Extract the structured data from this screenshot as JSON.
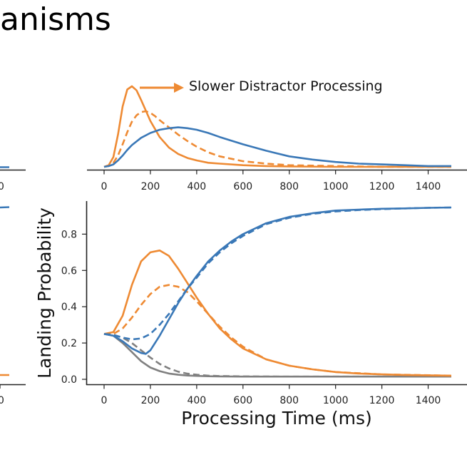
{
  "slide": {
    "title_fragment": "anisms"
  },
  "colors": {
    "orange": "#ee8a33",
    "blue": "#3a78b7",
    "gray": "#808080",
    "axis": "#222222"
  },
  "chart_data": [
    {
      "type": "line",
      "title": "",
      "xlabel": "",
      "ylabel": "",
      "xlim": [
        -80,
        1500
      ],
      "ylim": [
        0,
        1
      ],
      "xticks": [
        0,
        200,
        400,
        600,
        800,
        1000,
        1200,
        1400
      ],
      "annotation": {
        "text": "Slower Distractor Processing",
        "arrow": "right"
      },
      "y_axis_visible": false,
      "series": [
        {
          "color": "orange",
          "dash": "solid",
          "x": [
            0,
            20,
            40,
            60,
            80,
            100,
            120,
            140,
            160,
            180,
            200,
            240,
            280,
            320,
            360,
            400,
            450,
            500,
            600,
            700,
            800,
            1000,
            1200,
            1500
          ],
          "y": [
            0,
            0.02,
            0.12,
            0.4,
            0.75,
            0.96,
            1.0,
            0.95,
            0.83,
            0.7,
            0.57,
            0.37,
            0.24,
            0.16,
            0.11,
            0.08,
            0.05,
            0.04,
            0.02,
            0.01,
            0.005,
            0.0,
            0.0,
            0.0
          ]
        },
        {
          "color": "orange",
          "dash": "dashed",
          "x": [
            0,
            20,
            40,
            60,
            80,
            100,
            120,
            140,
            160,
            180,
            200,
            220,
            240,
            280,
            320,
            360,
            400,
            450,
            500,
            600,
            700,
            800,
            1000,
            1200,
            1500
          ],
          "y": [
            0,
            0.01,
            0.05,
            0.14,
            0.28,
            0.43,
            0.56,
            0.64,
            0.68,
            0.69,
            0.67,
            0.63,
            0.58,
            0.49,
            0.4,
            0.32,
            0.25,
            0.18,
            0.13,
            0.07,
            0.04,
            0.02,
            0.01,
            0.0,
            0.0
          ]
        },
        {
          "color": "blue",
          "dash": "solid",
          "x": [
            0,
            20,
            40,
            60,
            80,
            100,
            120,
            160,
            200,
            240,
            280,
            320,
            360,
            400,
            450,
            500,
            600,
            700,
            800,
            900,
            1000,
            1100,
            1200,
            1300,
            1400,
            1500
          ],
          "y": [
            0,
            0.01,
            0.03,
            0.08,
            0.14,
            0.21,
            0.27,
            0.36,
            0.42,
            0.46,
            0.48,
            0.49,
            0.48,
            0.46,
            0.42,
            0.37,
            0.28,
            0.2,
            0.13,
            0.09,
            0.06,
            0.04,
            0.03,
            0.02,
            0.01,
            0.01
          ]
        }
      ]
    },
    {
      "type": "line",
      "title": "",
      "xlabel": "Processing Time (ms)",
      "ylabel": "Landing Probability",
      "xlim": [
        -80,
        1500
      ],
      "ylim": [
        -0.02,
        0.99
      ],
      "xticks": [
        0,
        200,
        400,
        600,
        800,
        1000,
        1200,
        1400
      ],
      "yticks": [
        0.0,
        0.2,
        0.4,
        0.6,
        0.8
      ],
      "ytick_labels": [
        "0.0",
        "0.2",
        "0.4",
        "0.6",
        "0.8"
      ],
      "series": [
        {
          "color": "orange",
          "dash": "solid",
          "x": [
            0,
            40,
            80,
            120,
            160,
            200,
            240,
            280,
            320,
            360,
            400,
            450,
            500,
            550,
            600,
            700,
            800,
            900,
            1000,
            1100,
            1200,
            1300,
            1400,
            1500
          ],
          "y": [
            0.25,
            0.26,
            0.35,
            0.52,
            0.65,
            0.7,
            0.71,
            0.68,
            0.61,
            0.53,
            0.45,
            0.36,
            0.28,
            0.22,
            0.17,
            0.11,
            0.075,
            0.055,
            0.04,
            0.032,
            0.027,
            0.024,
            0.022,
            0.02
          ]
        },
        {
          "color": "orange",
          "dash": "dashed",
          "x": [
            0,
            40,
            80,
            120,
            160,
            200,
            240,
            280,
            320,
            360,
            400,
            450,
            500,
            550,
            600,
            700,
            800,
            900,
            1000,
            1200,
            1500
          ],
          "y": [
            0.25,
            0.25,
            0.28,
            0.34,
            0.41,
            0.47,
            0.51,
            0.52,
            0.51,
            0.48,
            0.43,
            0.36,
            0.29,
            0.23,
            0.18,
            0.11,
            0.075,
            0.055,
            0.04,
            0.027,
            0.02
          ]
        },
        {
          "color": "blue",
          "dash": "solid",
          "x": [
            0,
            40,
            80,
            120,
            160,
            180,
            200,
            240,
            280,
            320,
            360,
            400,
            450,
            500,
            550,
            600,
            700,
            800,
            900,
            1000,
            1100,
            1200,
            1300,
            1400,
            1500
          ],
          "y": [
            0.25,
            0.24,
            0.21,
            0.17,
            0.145,
            0.14,
            0.16,
            0.24,
            0.33,
            0.42,
            0.5,
            0.57,
            0.65,
            0.71,
            0.76,
            0.8,
            0.86,
            0.895,
            0.915,
            0.93,
            0.935,
            0.94,
            0.942,
            0.945,
            0.947
          ]
        },
        {
          "color": "blue",
          "dash": "dashed",
          "x": [
            0,
            40,
            80,
            120,
            160,
            200,
            240,
            280,
            320,
            360,
            400,
            450,
            500,
            550,
            600,
            700,
            800,
            900,
            1000,
            1100,
            1200,
            1300,
            1400,
            1500
          ],
          "y": [
            0.25,
            0.245,
            0.23,
            0.22,
            0.225,
            0.25,
            0.3,
            0.36,
            0.43,
            0.5,
            0.56,
            0.64,
            0.7,
            0.75,
            0.79,
            0.855,
            0.89,
            0.912,
            0.925,
            0.933,
            0.938,
            0.942,
            0.945,
            0.947
          ]
        },
        {
          "color": "gray",
          "dash": "solid",
          "x": [
            0,
            40,
            80,
            120,
            160,
            200,
            240,
            280,
            320,
            360,
            400,
            450,
            500,
            600,
            800,
            1000,
            1200,
            1500
          ],
          "y": [
            0.25,
            0.24,
            0.2,
            0.15,
            0.1,
            0.065,
            0.045,
            0.032,
            0.025,
            0.021,
            0.019,
            0.017,
            0.016,
            0.015,
            0.015,
            0.015,
            0.015,
            0.015
          ]
        },
        {
          "color": "gray",
          "dash": "dashed",
          "x": [
            0,
            40,
            80,
            120,
            160,
            200,
            240,
            280,
            320,
            360,
            400,
            450,
            500,
            600,
            800,
            1000,
            1200,
            1500
          ],
          "y": [
            0.25,
            0.245,
            0.23,
            0.2,
            0.16,
            0.12,
            0.085,
            0.06,
            0.042,
            0.031,
            0.025,
            0.02,
            0.018,
            0.016,
            0.015,
            0.015,
            0.015,
            0.015
          ]
        }
      ]
    }
  ],
  "left_fragments": {
    "top_panel_tick": "0",
    "bottom_panel_tick": "0"
  }
}
